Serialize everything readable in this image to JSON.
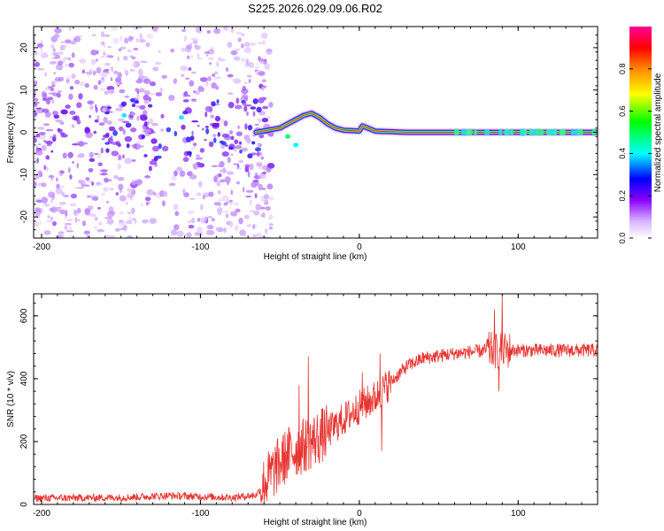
{
  "title": "S225.2026.029.09.06.R02",
  "chart_data": [
    {
      "type": "heatmap",
      "name": "spectrogram",
      "xlabel": "Height of straight line (km)",
      "ylabel": "Frequency (Hz)",
      "xlim": [
        -205,
        150
      ],
      "ylim": [
        -25,
        25
      ],
      "xticks": [
        -200,
        -100,
        0,
        100
      ],
      "yticks": [
        -20,
        -10,
        0,
        10,
        20
      ],
      "xtick_labels": [
        "-200",
        "-100",
        "0",
        "100"
      ],
      "ytick_labels": [
        "-20",
        "-10",
        "0",
        "10",
        "20"
      ],
      "colorbar": {
        "label": "Normalized spectral amplitude",
        "range": [
          0,
          1
        ],
        "ticks": [
          0.0,
          0.2,
          0.4,
          0.6,
          0.8
        ],
        "tick_labels": [
          "0.0",
          "0.2",
          "0.4",
          "0.6",
          "0.8"
        ],
        "colormap": [
          "#ffffff",
          "#8800ff",
          "#0000ff",
          "#00ffff",
          "#00ff00",
          "#ffff00",
          "#ff8800",
          "#ff0000",
          "#ff00aa"
        ]
      },
      "ridge_points": [
        [
          -65,
          0
        ],
        [
          -50,
          1
        ],
        [
          -35,
          4
        ],
        [
          -30,
          4.5
        ],
        [
          -25,
          3.5
        ],
        [
          -20,
          2
        ],
        [
          -15,
          1
        ],
        [
          -10,
          0.5
        ],
        [
          0,
          0.3
        ],
        [
          2,
          1.5
        ],
        [
          10,
          0.3
        ],
        [
          30,
          0
        ],
        [
          60,
          0
        ],
        [
          80,
          0
        ],
        [
          100,
          0
        ],
        [
          150,
          0
        ]
      ],
      "noise_region": [
        -205,
        -60
      ]
    },
    {
      "type": "line",
      "name": "snr",
      "xlabel": "Height of straight line (km)",
      "ylabel": "SNR (10 * v/v)",
      "xlim": [
        -205,
        150
      ],
      "ylim": [
        0,
        670
      ],
      "xticks": [
        -200,
        -100,
        0,
        100
      ],
      "yticks": [
        0,
        200,
        400,
        600
      ],
      "xtick_labels": [
        "-200",
        "-100",
        "0",
        "100"
      ],
      "ytick_labels": [
        "0",
        "200",
        "400",
        "600"
      ],
      "series_color": "#e8332f",
      "trend_points": [
        [
          -205,
          20
        ],
        [
          -150,
          22
        ],
        [
          -120,
          28
        ],
        [
          -100,
          25
        ],
        [
          -80,
          22
        ],
        [
          -65,
          30
        ],
        [
          -55,
          100
        ],
        [
          -45,
          160
        ],
        [
          -30,
          200
        ],
        [
          -20,
          230
        ],
        [
          -10,
          270
        ],
        [
          0,
          310
        ],
        [
          10,
          340
        ],
        [
          20,
          390
        ],
        [
          30,
          440
        ],
        [
          40,
          465
        ],
        [
          60,
          480
        ],
        [
          80,
          490
        ],
        [
          100,
          490
        ],
        [
          150,
          490
        ]
      ],
      "spikes": [
        [
          -32,
          470
        ],
        [
          -38,
          380
        ],
        [
          2,
          420
        ],
        [
          13,
          480
        ],
        [
          14,
          170
        ],
        [
          88,
          360
        ],
        [
          90,
          670
        ],
        [
          85,
          620
        ]
      ]
    }
  ]
}
